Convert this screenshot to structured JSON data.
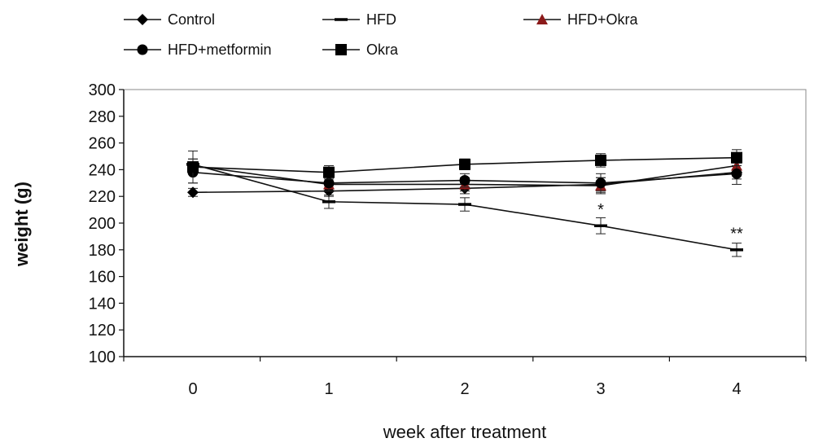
{
  "chart_data": {
    "type": "line",
    "xlabel": "week after treatment",
    "ylabel": "weight (g)",
    "x": [
      0,
      1,
      2,
      3,
      4
    ],
    "ylim": [
      100,
      300
    ],
    "yticks": [
      100,
      120,
      140,
      160,
      180,
      200,
      220,
      240,
      260,
      280,
      300
    ],
    "grid": false,
    "legend_position": "top",
    "series": [
      {
        "name": "Control",
        "marker": "diamond",
        "color": "#000000",
        "values": [
          223,
          224,
          226,
          229,
          238
        ],
        "errors": [
          3,
          4,
          4,
          5,
          5
        ]
      },
      {
        "name": "HFD",
        "marker": "dash",
        "color": "#000000",
        "values": [
          244,
          216,
          214,
          198,
          180
        ],
        "errors": [
          4,
          5,
          5,
          6,
          5
        ]
      },
      {
        "name": "HFD+Okra",
        "marker": "triangle",
        "color": "#8b1a1a",
        "values": [
          243,
          229,
          229,
          228,
          243
        ],
        "errors": [
          5,
          5,
          5,
          6,
          6
        ]
      },
      {
        "name": "HFD+metformin",
        "marker": "circle",
        "color": "#000000",
        "values": [
          238,
          230,
          232,
          230,
          237
        ],
        "errors": [
          8,
          6,
          5,
          7,
          8
        ]
      },
      {
        "name": "Okra",
        "marker": "square",
        "color": "#000000",
        "values": [
          242,
          238,
          244,
          247,
          249
        ],
        "errors": [
          12,
          5,
          4,
          5,
          6
        ]
      }
    ],
    "annotations": [
      {
        "x": 3,
        "y": 206,
        "text": "*"
      },
      {
        "x": 4,
        "y": 188,
        "text": "**"
      }
    ]
  }
}
